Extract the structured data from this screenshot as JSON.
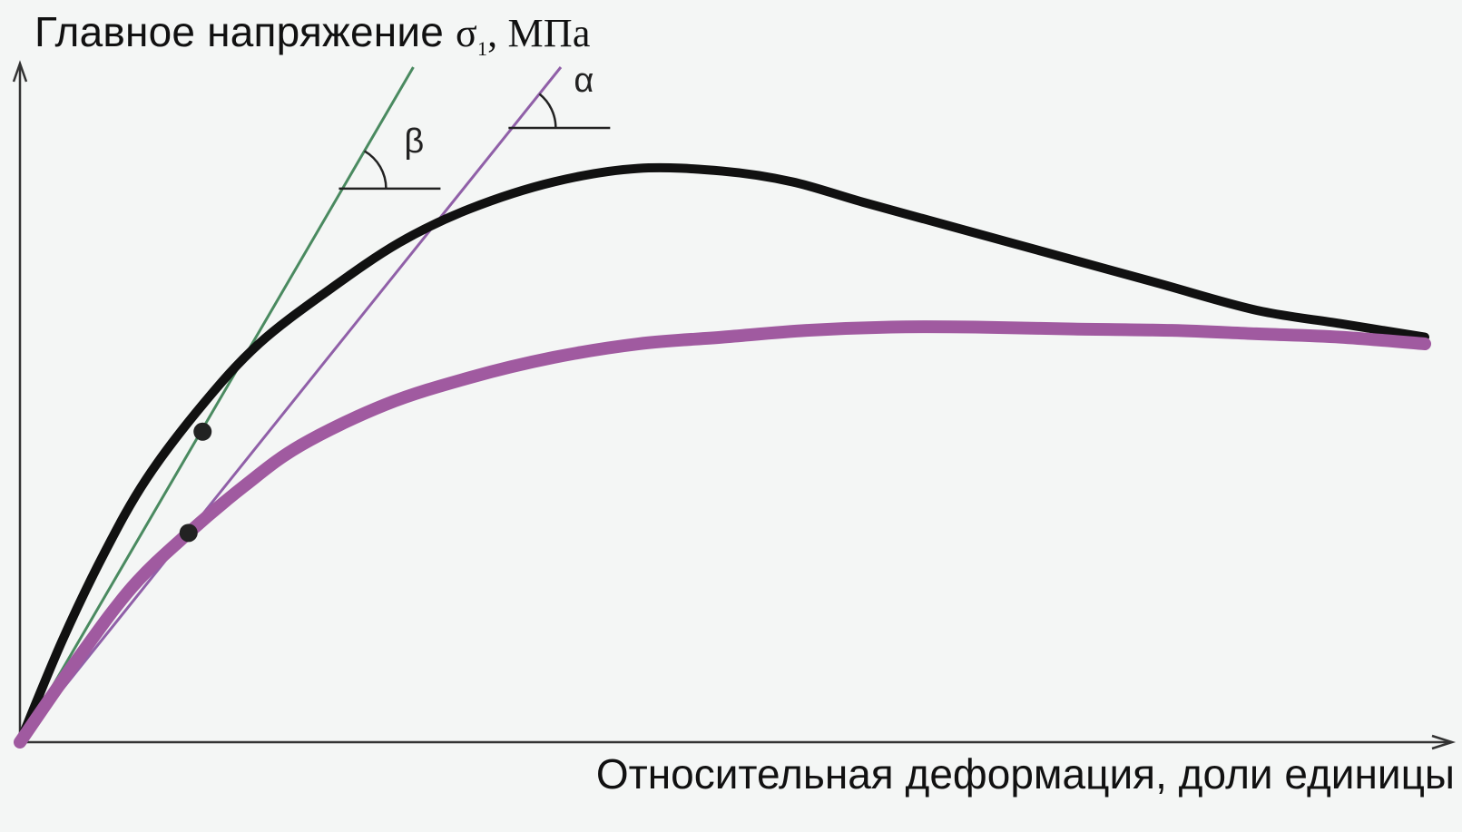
{
  "chart_data": {
    "type": "line",
    "title": "",
    "ylabel": {
      "text": "Главное напряжение ",
      "symbol": "σ",
      "subscript": "1",
      "unit": ", МПа"
    },
    "xlabel": "Относительная деформация, доли единицы",
    "xlim": [
      0,
      1
    ],
    "ylim": [
      0,
      1
    ],
    "grid": false,
    "axis_ticks": false,
    "series": [
      {
        "color": "#111111",
        "style": "solid-thick",
        "x": [
          0.0,
          0.03,
          0.06,
          0.09,
          0.13,
          0.17,
          0.22,
          0.27,
          0.32,
          0.38,
          0.44,
          0.5,
          0.55,
          0.6,
          0.67,
          0.74,
          0.81,
          0.88,
          0.94,
          1.0
        ],
        "y": [
          0.0,
          0.15,
          0.28,
          0.39,
          0.5,
          0.59,
          0.67,
          0.74,
          0.79,
          0.83,
          0.85,
          0.846,
          0.83,
          0.8,
          0.76,
          0.72,
          0.68,
          0.64,
          0.62,
          0.6
        ]
      },
      {
        "color": "#a05aa0",
        "style": "solid-thick",
        "x": [
          0.0,
          0.04,
          0.08,
          0.12,
          0.16,
          0.2,
          0.26,
          0.32,
          0.38,
          0.44,
          0.5,
          0.56,
          0.62,
          0.68,
          0.75,
          0.82,
          0.88,
          0.94,
          1.0
        ],
        "y": [
          0.0,
          0.12,
          0.23,
          0.31,
          0.38,
          0.44,
          0.5,
          0.54,
          0.57,
          0.59,
          0.6,
          0.61,
          0.615,
          0.615,
          0.612,
          0.61,
          0.605,
          0.6,
          0.59
        ]
      }
    ],
    "tangents": [
      {
        "color": "#4a8a60",
        "x": [
          0.0,
          0.28
        ],
        "y": [
          0.0,
          1.0
        ],
        "angle_label": "β",
        "angle_mark_y": 0.82
      },
      {
        "color": "#9060a8",
        "x": [
          0.0,
          0.385
        ],
        "y": [
          0.0,
          1.0
        ],
        "angle_label": "α",
        "angle_mark_y": 0.91
      }
    ],
    "markers": [
      {
        "x": 0.13,
        "y": 0.46,
        "color": "#222222"
      },
      {
        "x": 0.12,
        "y": 0.31,
        "color": "#222222"
      }
    ]
  }
}
